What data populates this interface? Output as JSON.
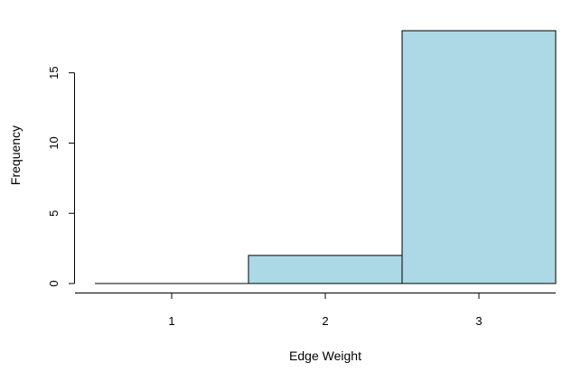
{
  "chart_data": {
    "type": "bar",
    "subtype": "histogram",
    "xlabel": "Edge Weight",
    "ylabel": "Frequency",
    "bins": [
      {
        "start": 0.5,
        "end": 1.5,
        "count": 0
      },
      {
        "start": 1.5,
        "end": 2.5,
        "count": 2
      },
      {
        "start": 2.5,
        "end": 3.5,
        "count": 18
      }
    ],
    "x_ticks": [
      1,
      2,
      3
    ],
    "y_ticks": [
      0,
      5,
      10,
      15
    ],
    "xlim": [
      0.5,
      3.5
    ],
    "ylim": [
      0,
      18
    ],
    "bar_fill": "#add8e6",
    "bar_stroke": "#000000",
    "grid": false,
    "legend": "none"
  }
}
